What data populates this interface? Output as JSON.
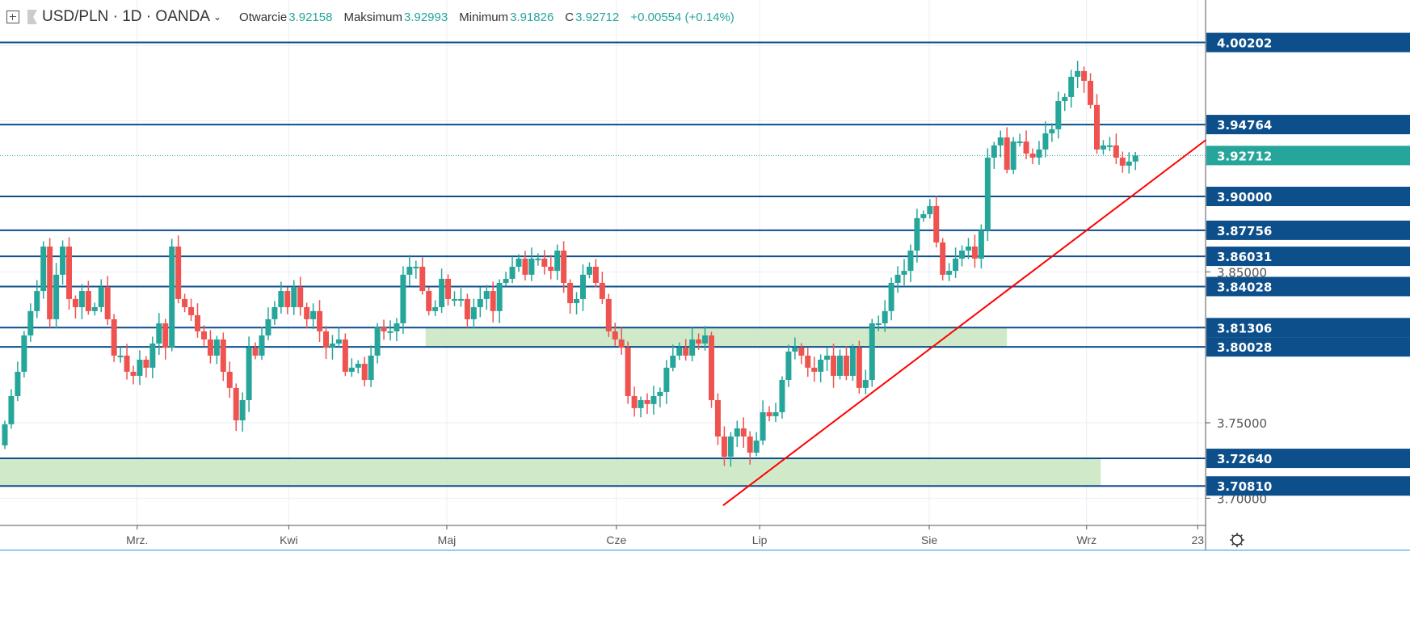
{
  "header": {
    "symbol": "USD/PLN · 1D · OANDA",
    "open_label": "Otwarcie",
    "open_value": "3.92158",
    "high_label": "Maksimum",
    "high_value": "3.92993",
    "low_label": "Minimum",
    "low_value": "3.91826",
    "close_label": "C",
    "close_value": "3.92712",
    "change": "+0.00554 (+0.14%)"
  },
  "colors": {
    "up": "#26a69a",
    "down": "#ef5350",
    "level": "#0d4f8b",
    "trend": "#ff0000",
    "zone": "#c8e6c0",
    "last": "#26a69a"
  },
  "chart_data": {
    "type": "candlestick",
    "symbol": "USD/PLN",
    "interval": "1D",
    "first_open": 3.735,
    "wick": 0.006,
    "closes": [
      3.749,
      3.7677,
      3.7838,
      3.8079,
      3.824,
      3.8373,
      3.8668,
      3.8186,
      3.8481,
      3.8668,
      3.832,
      3.8266,
      3.8373,
      3.824,
      3.8266,
      3.84,
      3.8186,
      3.7945,
      3.7945,
      3.7838,
      3.7811,
      3.7918,
      3.7865,
      3.8025,
      3.8159,
      3.7998,
      3.8668,
      3.832,
      3.8266,
      3.8213,
      3.8106,
      3.8052,
      3.7945,
      3.8052,
      3.7838,
      3.7731,
      3.7516,
      3.765,
      3.7998,
      3.7945,
      3.8079,
      3.8186,
      3.8266,
      3.8373,
      3.8266,
      3.84,
      3.8266,
      3.8186,
      3.824,
      3.8106,
      3.7998,
      3.8025,
      3.8052,
      3.7838,
      3.7865,
      3.7891,
      3.7784,
      3.7945,
      3.8132,
      3.8106,
      3.8106,
      3.8159,
      3.8481,
      3.8534,
      3.8534,
      3.8373,
      3.824,
      3.8266,
      3.8454,
      3.832,
      3.832,
      3.832,
      3.8186,
      3.8266,
      3.832,
      3.8373,
      3.824,
      3.8427,
      3.8454,
      3.8534,
      3.8588,
      3.8481,
      3.8588,
      3.8588,
      3.8534,
      3.8507,
      3.8641,
      3.8427,
      3.8293,
      3.832,
      3.8481,
      3.8534,
      3.8427,
      3.832,
      3.8106,
      3.8052,
      3.7998,
      3.7677,
      3.7597,
      3.765,
      3.7624,
      3.7677,
      3.7704,
      3.7865,
      3.7945,
      3.7998,
      3.7945,
      3.8052,
      3.8025,
      3.8079,
      3.765,
      3.7409,
      3.7275,
      3.7409,
      3.7463,
      3.7409,
      3.7302,
      3.7382,
      3.757,
      3.7543,
      3.757,
      3.7784,
      3.7972,
      3.7998,
      3.7945,
      3.7865,
      3.7838,
      3.7918,
      3.7945,
      3.7811,
      3.7945,
      3.7811,
      3.7998,
      3.7731,
      3.7784,
      3.8159,
      3.8159,
      3.824,
      3.8427,
      3.8481,
      3.8507,
      3.8641,
      3.8856,
      3.8882,
      3.8936,
      3.8695,
      3.8481,
      3.8507,
      3.8588,
      3.8641,
      3.8668,
      3.8588,
      3.8775,
      3.9257,
      3.9338,
      3.9391,
      3.9177,
      3.9364,
      3.9364,
      3.9284,
      3.9257,
      3.9311,
      3.9418,
      3.9445,
      3.9632,
      3.9659,
      3.9793,
      3.9831,
      3.9766,
      3.9606,
      3.9311,
      3.9338,
      3.9338,
      3.9257,
      3.9204,
      3.9231,
      3.92712
    ],
    "levels": [
      "4.00202",
      "3.94764",
      "3.90000",
      "3.87756",
      "3.86031",
      "3.84028",
      "3.81306",
      "3.80028",
      "3.72640",
      "3.70810"
    ],
    "last_price": "3.92712",
    "price_ticks": [
      "3.85000",
      "3.75000",
      "3.70000"
    ],
    "zones": [
      {
        "from_index": 65.5,
        "to_index": 156,
        "top": 3.81306,
        "bottom": 3.80028
      },
      {
        "from_index": -1,
        "to_index": 170.6,
        "top": 3.7264,
        "bottom": 3.7081
      }
    ],
    "trendline": [
      {
        "index": 111.8,
        "price": 3.6952
      },
      {
        "index": 187,
        "price": 3.9375
      }
    ],
    "x_labels": [
      {
        "label": "Mrz.",
        "index": 20.6
      },
      {
        "label": "Kwi",
        "index": 44.2
      },
      {
        "label": "Maj",
        "index": 68.8
      },
      {
        "label": "Cze",
        "index": 95.2
      },
      {
        "label": "Lip",
        "index": 117.5
      },
      {
        "label": "Sie",
        "index": 143.9
      },
      {
        "label": "Wrz",
        "index": 168.4
      },
      {
        "label": "23",
        "index": 185.7
      }
    ]
  }
}
